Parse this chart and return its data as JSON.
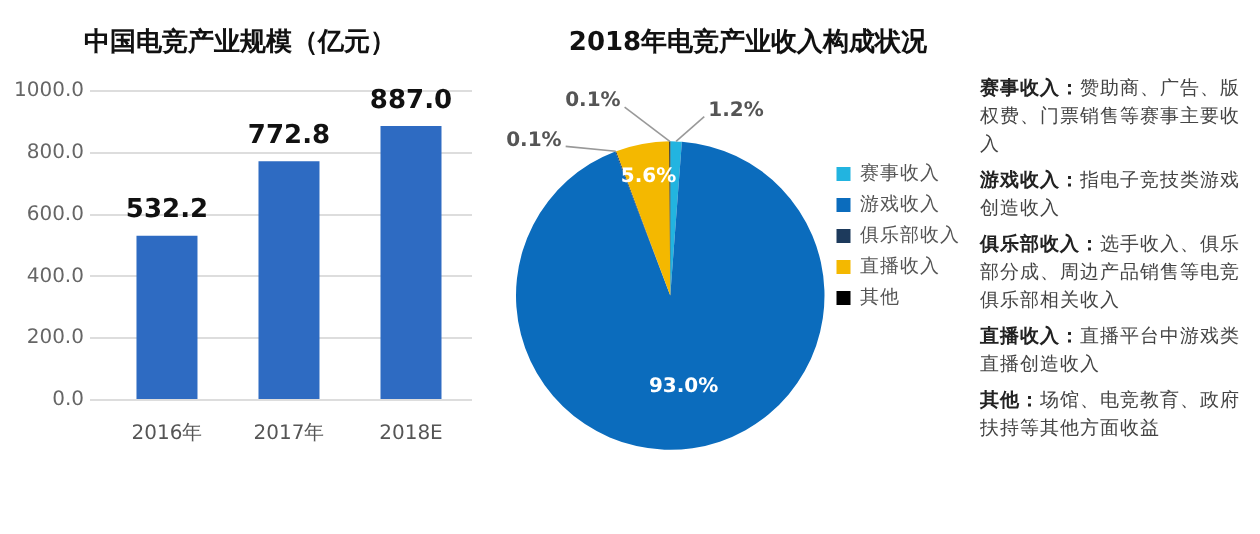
{
  "chart_data": [
    {
      "type": "bar",
      "title": "中国电竞产业规模（亿元）",
      "categories": [
        "2016年",
        "2017年",
        "2018E"
      ],
      "values": [
        532.2,
        772.8,
        887.0
      ],
      "color": "#2e6bc2",
      "value_labels": [
        "532.2",
        "772.8",
        "887.0"
      ],
      "ylim": [
        0,
        1000
      ],
      "yticks": [
        {
          "value": 0,
          "label": "0.0"
        },
        {
          "value": 200,
          "label": "200.0"
        },
        {
          "value": 400,
          "label": "400.0"
        },
        {
          "value": 600,
          "label": "600.0"
        },
        {
          "value": 800,
          "label": "800.0"
        },
        {
          "value": 1000,
          "label": "1000.0"
        }
      ],
      "grid": "y"
    },
    {
      "type": "pie",
      "title": "2018年电竞产业收入构成状况",
      "categories": [
        "赛事收入",
        "游戏收入",
        "俱乐部收入",
        "直播收入",
        "其他"
      ],
      "values": [
        1.2,
        93.0,
        0.1,
        5.6,
        0.1
      ],
      "colors": [
        "#22b4e0",
        "#0b6cbd",
        "#1d3a5c",
        "#f4b800",
        "#000000"
      ],
      "value_labels": [
        "1.2%",
        "93.0%",
        "0.1%",
        "5.6%",
        "0.1%"
      ],
      "legend": "right"
    },
    {
      "type": "other",
      "annotations": [
        "赛事收入：赞助商、广告、版权费、门票销售等赛事主要收入",
        "游戏收入：指电子竞技类游戏创造收入",
        "俱乐部收入：选手收入、俱乐部分成、周边产品销售等电竞俱乐部相关收入",
        "直播收入：直播平台中游戏类直播创造收入",
        "其他：场馆、电竞教育、政府扶持等其他方面收益"
      ]
    }
  ]
}
